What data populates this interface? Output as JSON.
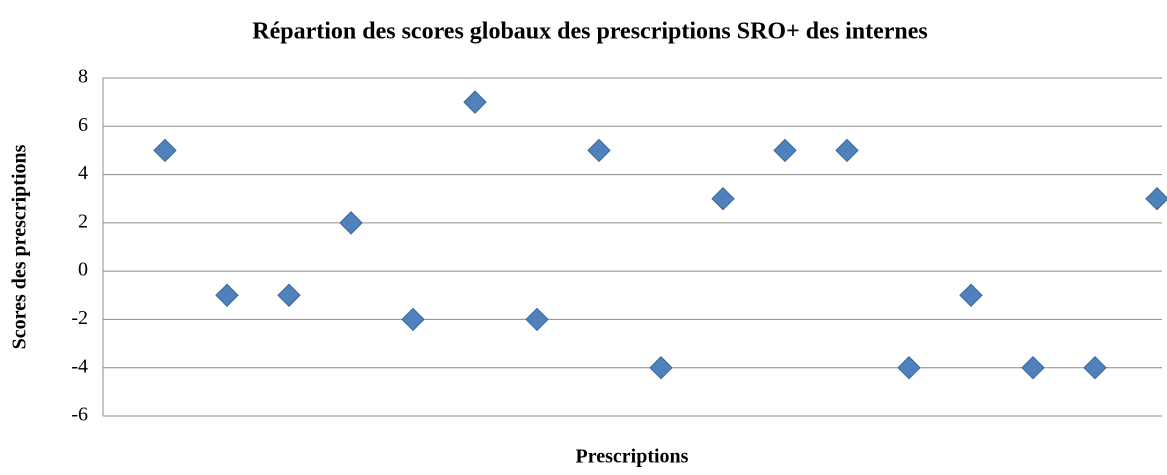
{
  "chart_data": {
    "type": "scatter",
    "title": "Répartion des scores globaux des prescriptions SRO+ des internes",
    "x_label": "Prescriptions",
    "y_label": "Scores des prescriptions",
    "x": [
      1,
      2,
      3,
      4,
      5,
      6,
      7,
      8,
      9,
      10,
      11,
      12,
      13,
      14,
      15,
      16,
      17
    ],
    "values": [
      5,
      -1,
      -1,
      2,
      -2,
      7,
      -2,
      5,
      -4,
      3,
      5,
      5,
      -4,
      -1,
      -4,
      -4,
      3
    ],
    "color": "#4f81bd",
    "xlim": [
      0,
      17
    ],
    "ylim": [
      -6,
      8
    ],
    "yticks": [
      -6,
      -4,
      -2,
      0,
      2,
      4,
      6,
      8
    ],
    "grid": true
  }
}
